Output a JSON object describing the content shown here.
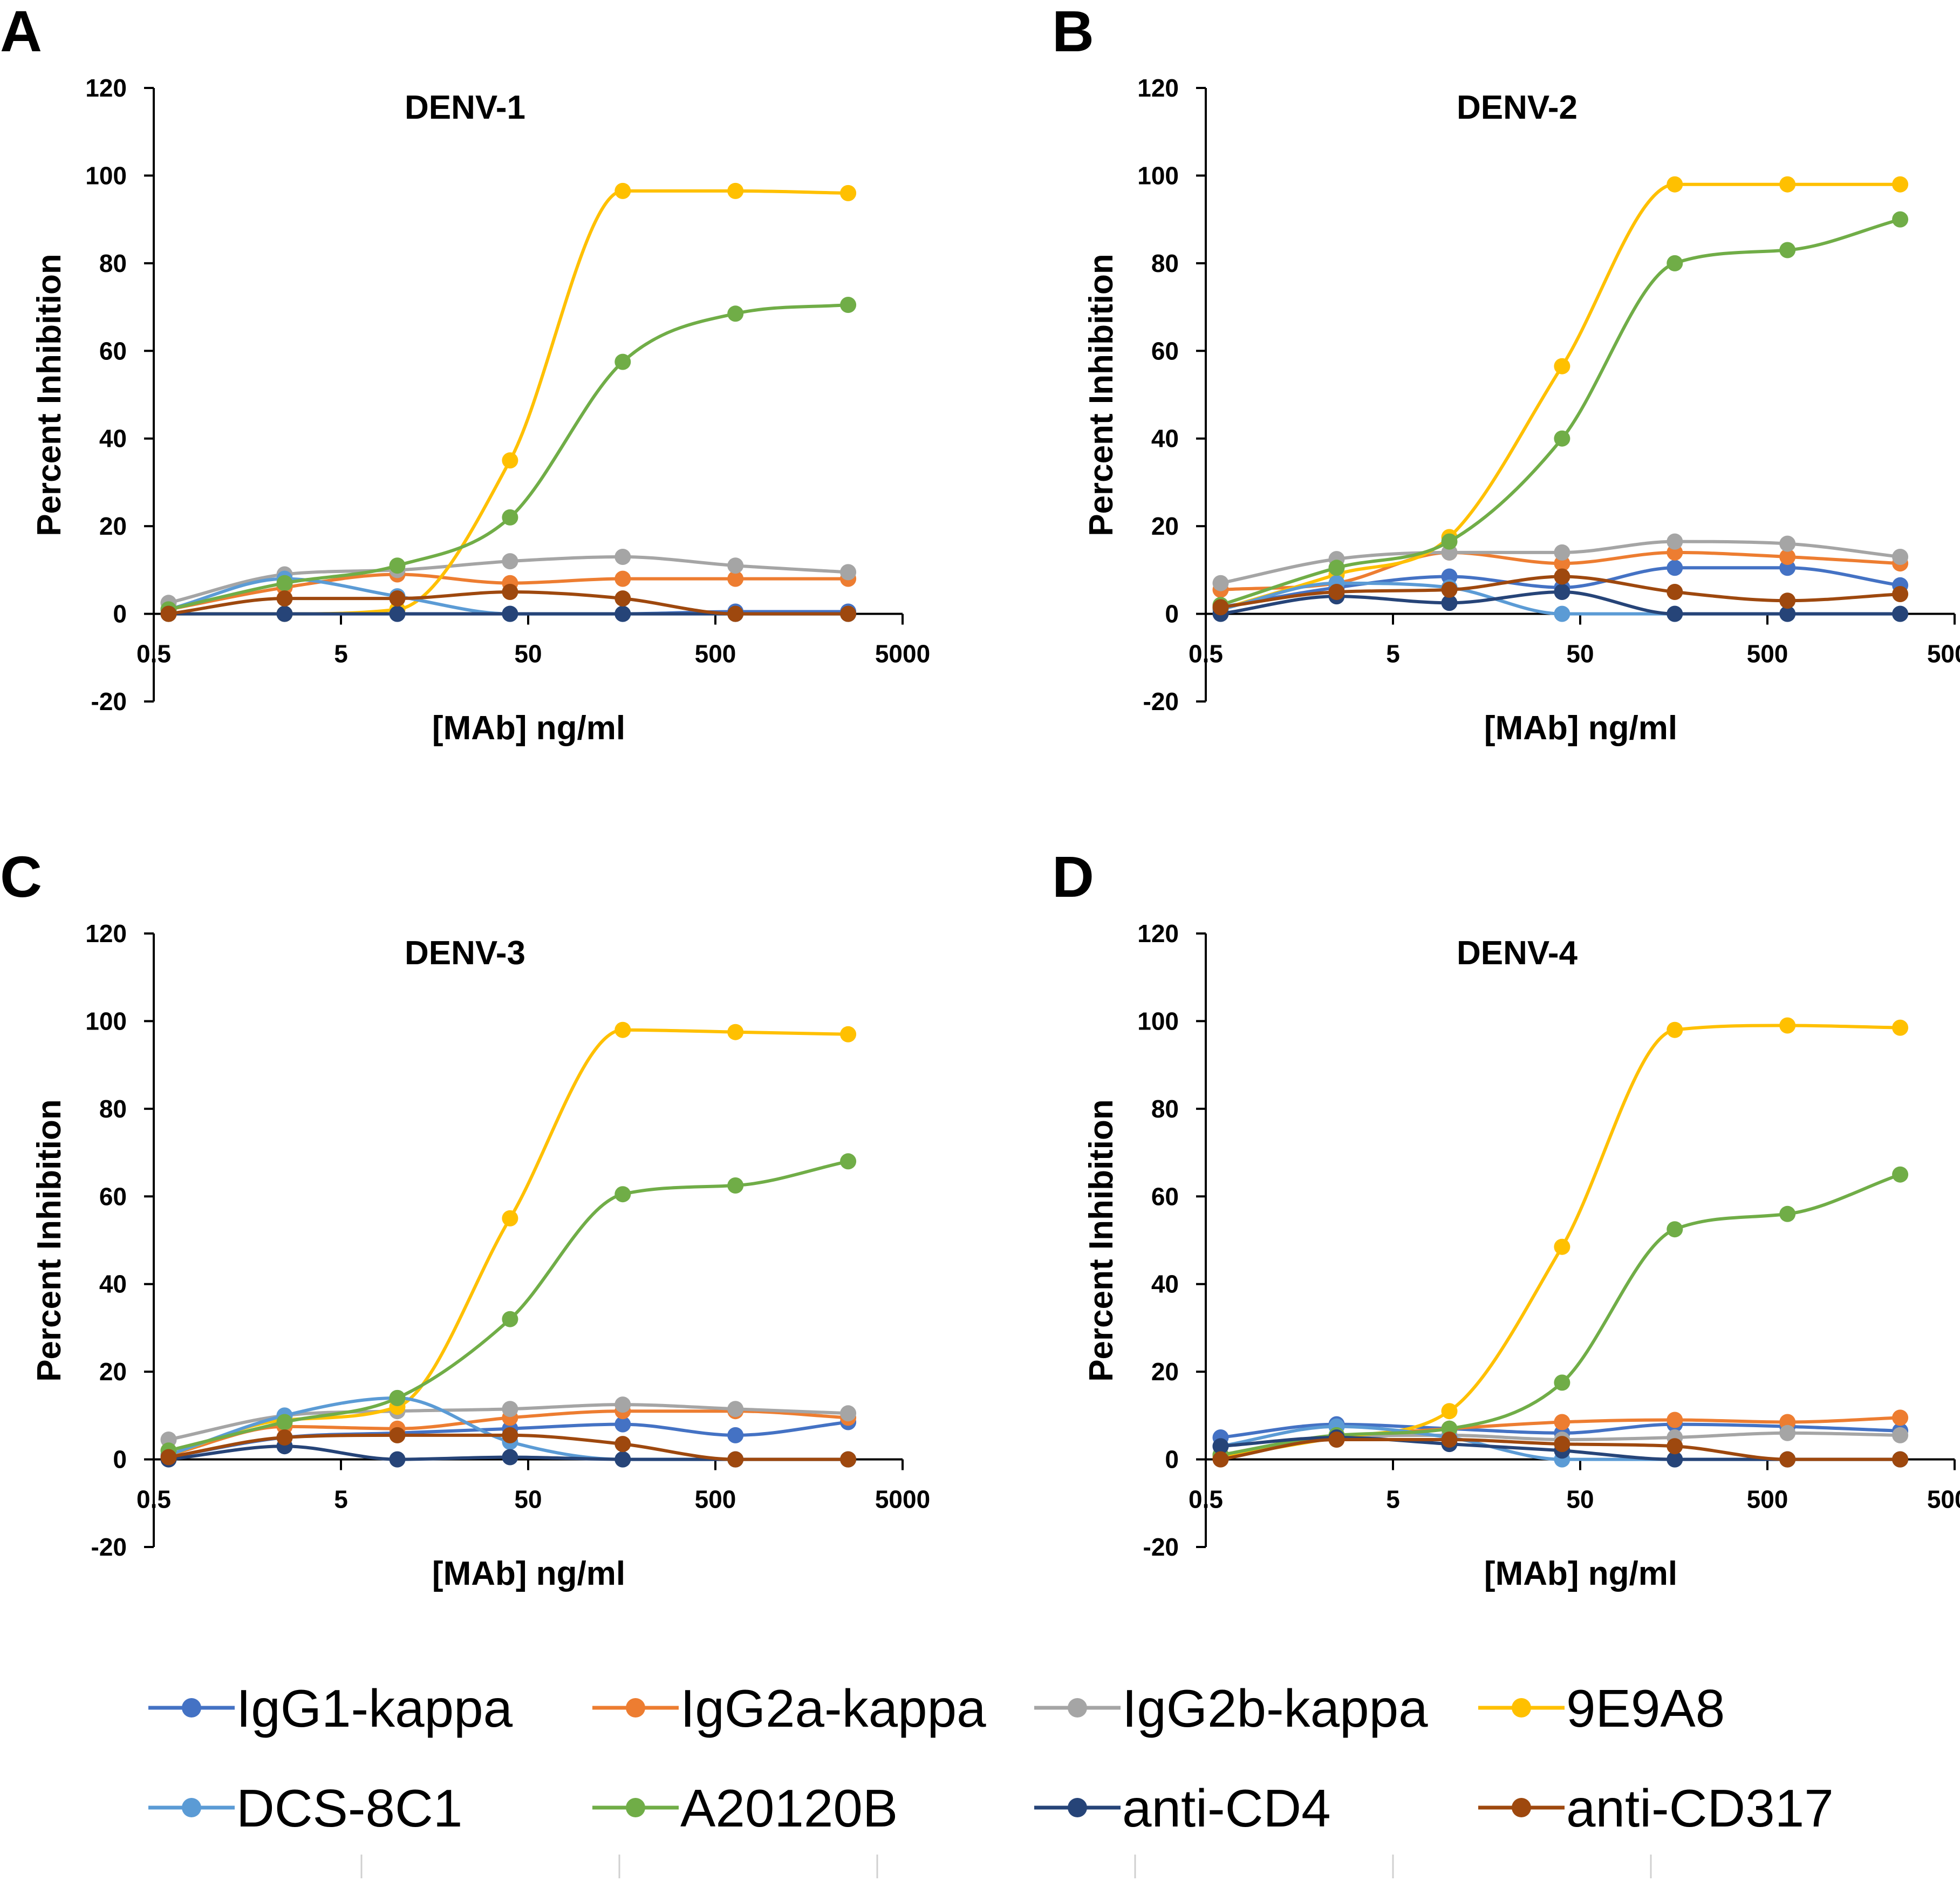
{
  "figure": {
    "x_axis_label": "[MAb] ng/ml",
    "y_axis_label": "Percent Inhibition",
    "x_tick_labels": [
      "0.5",
      "5",
      "50",
      "500",
      "5000"
    ],
    "y_tick_labels": [
      "120",
      "100",
      "80",
      "60",
      "40",
      "20",
      "0",
      "-20"
    ]
  },
  "legend": {
    "items": [
      {
        "name": "IgG1-kappa",
        "color": "#4472C4"
      },
      {
        "name": "IgG2a-kappa",
        "color": "#ED7D31"
      },
      {
        "name": "IgG2b-kappa",
        "color": "#A5A5A5"
      },
      {
        "name": "9E9A8",
        "color": "#FFC000"
      },
      {
        "name": "DCS-8C1",
        "color": "#5B9BD5"
      },
      {
        "name": "A20120B",
        "color": "#70AD47"
      },
      {
        "name": "anti-CD4",
        "color": "#264478"
      },
      {
        "name": "anti-CD317",
        "color": "#9E480E"
      }
    ]
  },
  "chart_data": [
    {
      "panel": "A",
      "type": "line",
      "title": "DENV-1",
      "xlabel": "[MAb] ng/ml",
      "ylabel": "Percent Inhibition",
      "x_scale": "log",
      "xlim": [
        0.5,
        5000
      ],
      "ylim": [
        -20,
        120
      ],
      "x": [
        0.6,
        2.5,
        10,
        40,
        160,
        640,
        2560
      ],
      "series": [
        {
          "name": "IgG1-kappa",
          "color": "#4472C4",
          "values": [
            0,
            0,
            0,
            0,
            0,
            0.5,
            0.5
          ]
        },
        {
          "name": "IgG2a-kappa",
          "color": "#ED7D31",
          "values": [
            1,
            6,
            9,
            7,
            8,
            8,
            8
          ]
        },
        {
          "name": "IgG2b-kappa",
          "color": "#A5A5A5",
          "values": [
            2.5,
            9,
            10,
            12,
            13,
            11,
            9.5
          ]
        },
        {
          "name": "9E9A8",
          "color": "#FFC000",
          "values": [
            0,
            0,
            1,
            35,
            96.5,
            96.5,
            96
          ]
        },
        {
          "name": "DCS-8C1",
          "color": "#5B9BD5",
          "values": [
            1,
            8,
            4,
            0,
            0,
            0,
            0
          ]
        },
        {
          "name": "A20120B",
          "color": "#70AD47",
          "values": [
            1,
            7,
            11,
            22,
            57.5,
            68.5,
            70.5
          ]
        },
        {
          "name": "anti-CD4",
          "color": "#264478",
          "values": [
            0,
            0,
            0,
            0,
            0,
            0,
            0
          ]
        },
        {
          "name": "anti-CD317",
          "color": "#9E480E",
          "values": [
            0,
            3.5,
            3.5,
            5,
            3.5,
            0,
            0
          ]
        }
      ]
    },
    {
      "panel": "B",
      "type": "line",
      "title": "DENV-2",
      "xlabel": "[MAb] ng/ml",
      "ylabel": "Percent Inhibition",
      "x_scale": "log",
      "xlim": [
        0.5,
        5000
      ],
      "ylim": [
        -20,
        120
      ],
      "x": [
        0.6,
        2.5,
        10,
        40,
        160,
        640,
        2560
      ],
      "series": [
        {
          "name": "IgG1-kappa",
          "color": "#4472C4",
          "values": [
            1.5,
            6,
            8.5,
            6,
            10.5,
            10.5,
            6.5
          ]
        },
        {
          "name": "IgG2a-kappa",
          "color": "#ED7D31",
          "values": [
            5.5,
            7,
            14,
            11.5,
            14,
            13,
            11.5
          ]
        },
        {
          "name": "IgG2b-kappa",
          "color": "#A5A5A5",
          "values": [
            7,
            12.5,
            14,
            14,
            16.5,
            16,
            13
          ]
        },
        {
          "name": "9E9A8",
          "color": "#FFC000",
          "values": [
            1,
            9,
            17.5,
            56.5,
            98,
            98,
            98
          ]
        },
        {
          "name": "DCS-8C1",
          "color": "#5B9BD5",
          "values": [
            1,
            7,
            6,
            0,
            0,
            0,
            0
          ]
        },
        {
          "name": "A20120B",
          "color": "#70AD47",
          "values": [
            2,
            10.5,
            16.5,
            40,
            80,
            83,
            90
          ]
        },
        {
          "name": "anti-CD4",
          "color": "#264478",
          "values": [
            0,
            4,
            2.5,
            5,
            0,
            0,
            0
          ]
        },
        {
          "name": "anti-CD317",
          "color": "#9E480E",
          "values": [
            1.5,
            5,
            5.5,
            8.5,
            5,
            3,
            4.5
          ]
        }
      ]
    },
    {
      "panel": "C",
      "type": "line",
      "title": "DENV-3",
      "xlabel": "[MAb] ng/ml",
      "ylabel": "Percent Inhibition",
      "x_scale": "log",
      "xlim": [
        0.5,
        5000
      ],
      "ylim": [
        -20,
        120
      ],
      "x": [
        0.6,
        2.5,
        10,
        40,
        160,
        640,
        2560
      ],
      "series": [
        {
          "name": "IgG1-kappa",
          "color": "#4472C4",
          "values": [
            0.5,
            5,
            6,
            7,
            8,
            5.5,
            8.5
          ]
        },
        {
          "name": "IgG2a-kappa",
          "color": "#ED7D31",
          "values": [
            1,
            7.5,
            7,
            9.5,
            11,
            11,
            9.5
          ]
        },
        {
          "name": "IgG2b-kappa",
          "color": "#A5A5A5",
          "values": [
            4.5,
            10,
            11,
            11.5,
            12.5,
            11.5,
            10.5
          ]
        },
        {
          "name": "9E9A8",
          "color": "#FFC000",
          "values": [
            1,
            9,
            12,
            55,
            98,
            97.5,
            97
          ]
        },
        {
          "name": "DCS-8C1",
          "color": "#5B9BD5",
          "values": [
            1,
            10,
            14,
            4,
            0,
            0,
            0
          ]
        },
        {
          "name": "A20120B",
          "color": "#70AD47",
          "values": [
            2,
            8.5,
            14,
            32,
            60.5,
            62.5,
            68
          ]
        },
        {
          "name": "anti-CD4",
          "color": "#264478",
          "values": [
            0,
            3,
            0,
            0.5,
            0,
            0,
            0
          ]
        },
        {
          "name": "anti-CD317",
          "color": "#9E480E",
          "values": [
            0.5,
            5,
            5.5,
            5.5,
            3.5,
            0,
            0
          ]
        }
      ]
    },
    {
      "panel": "D",
      "type": "line",
      "title": "DENV-4",
      "xlabel": "[MAb] ng/ml",
      "ylabel": "Percent Inhibition",
      "x_scale": "log",
      "xlim": [
        0.5,
        5000
      ],
      "ylim": [
        -20,
        120
      ],
      "x": [
        0.6,
        2.5,
        10,
        40,
        160,
        640,
        2560
      ],
      "series": [
        {
          "name": "IgG1-kappa",
          "color": "#4472C4",
          "values": [
            5,
            8,
            7,
            6,
            8,
            7.5,
            6.5
          ]
        },
        {
          "name": "IgG2a-kappa",
          "color": "#ED7D31",
          "values": [
            1,
            5,
            7,
            8.5,
            9,
            8.5,
            9.5
          ]
        },
        {
          "name": "IgG2b-kappa",
          "color": "#A5A5A5",
          "values": [
            1,
            5,
            5.5,
            4.5,
            5,
            6,
            5.5
          ]
        },
        {
          "name": "9E9A8",
          "color": "#FFC000",
          "values": [
            0.5,
            5,
            11,
            48.5,
            98,
            99,
            98.5
          ]
        },
        {
          "name": "DCS-8C1",
          "color": "#5B9BD5",
          "values": [
            3,
            7.5,
            5,
            0,
            0,
            0,
            0
          ]
        },
        {
          "name": "A20120B",
          "color": "#70AD47",
          "values": [
            1,
            5.5,
            7,
            17.5,
            52.5,
            56,
            65
          ]
        },
        {
          "name": "anti-CD4",
          "color": "#264478",
          "values": [
            3,
            5,
            3.5,
            2,
            0,
            0,
            0
          ]
        },
        {
          "name": "anti-CD317",
          "color": "#9E480E",
          "values": [
            0,
            4.5,
            4.5,
            3.5,
            3,
            0,
            0
          ]
        }
      ]
    }
  ]
}
